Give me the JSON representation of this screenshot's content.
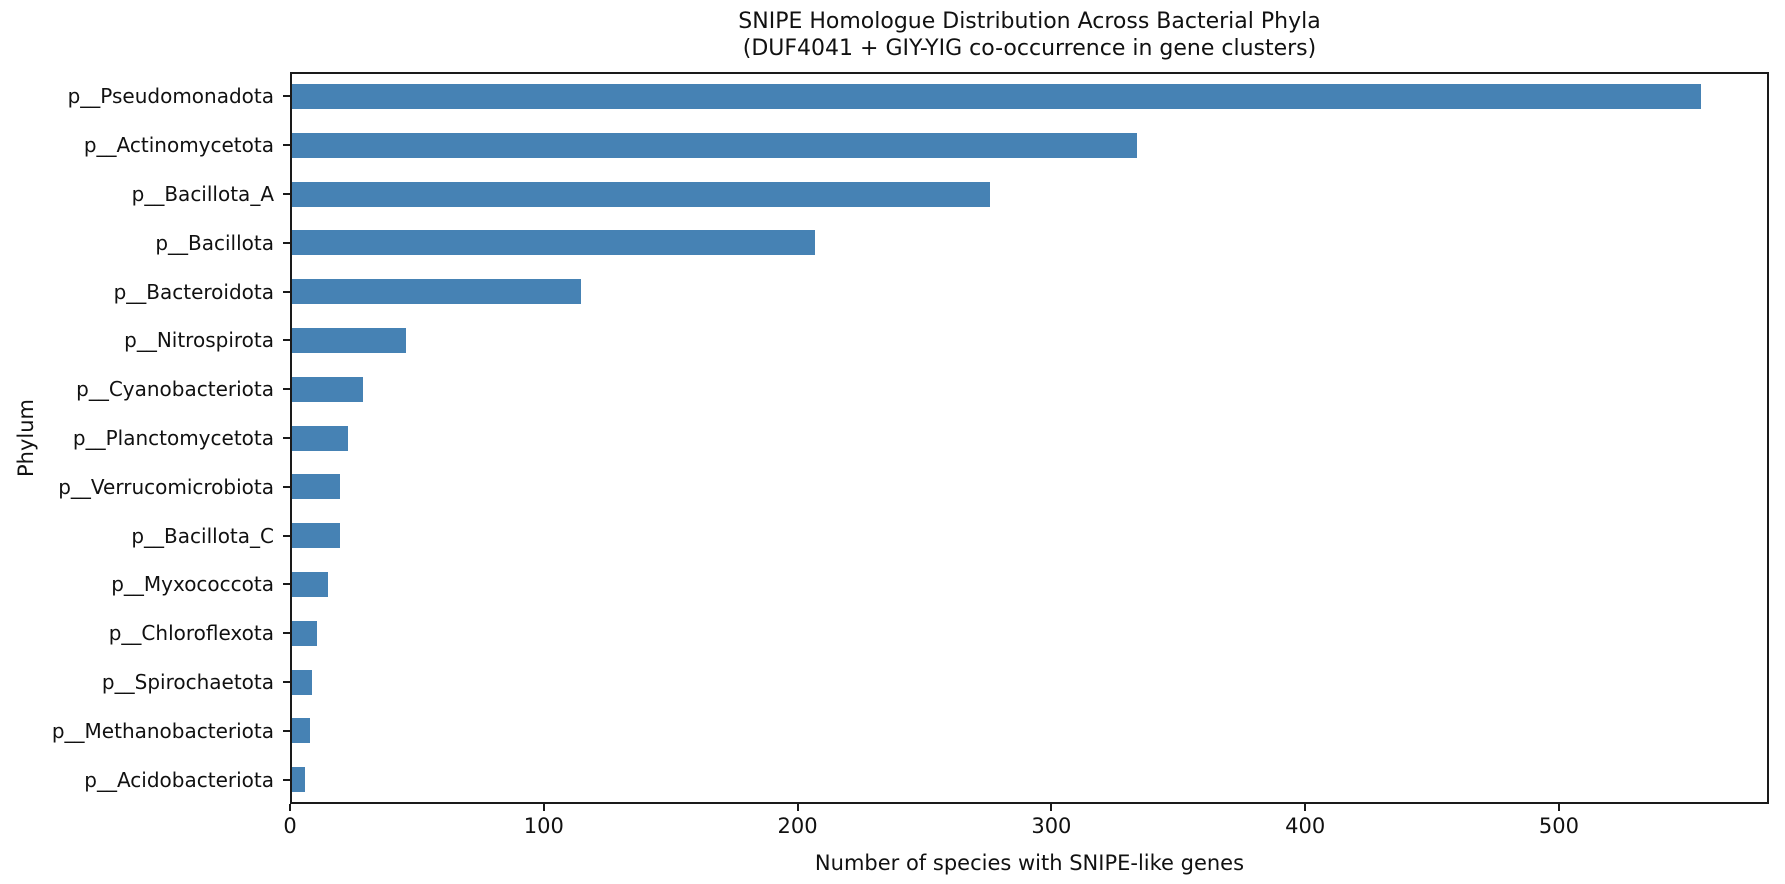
{
  "title_lines": [
    "SNIPE Homologue Distribution Across Bacterial Phyla",
    "(DUF4041 + GIY-YIG co-occurrence in gene clusters)"
  ],
  "chart_data": {
    "type": "bar",
    "orientation": "horizontal",
    "title": "SNIPE Homologue Distribution Across Bacterial Phyla (DUF4041 + GIY-YIG co-occurrence in gene clusters)",
    "xlabel": "Number of species with SNIPE-like genes",
    "ylabel": "Phylum",
    "categories": [
      "p__Pseudomonadota",
      "p__Actinomycetota",
      "p__Bacillota_A",
      "p__Bacillota",
      "p__Bacteroidota",
      "p__Nitrospirota",
      "p__Cyanobacteriota",
      "p__Planctomycetota",
      "p__Verrucomicrobiota",
      "p__Bacillota_C",
      "p__Myxococcota",
      "p__Chloroflexota",
      "p__Spirochaetota",
      "p__Methanobacteriota",
      "p__Acidobacteriota"
    ],
    "values": [
      555,
      333,
      275,
      206,
      114,
      45,
      28,
      22,
      19,
      19,
      14,
      10,
      8,
      7,
      5
    ],
    "x_ticks": [
      0,
      100,
      200,
      300,
      400,
      500
    ],
    "xlim": [
      0,
      582.75
    ],
    "grid": false,
    "legend": null,
    "bar_color": "#4682B4",
    "axis_color": "#1a1a1a",
    "background_color": "#ffffff"
  }
}
